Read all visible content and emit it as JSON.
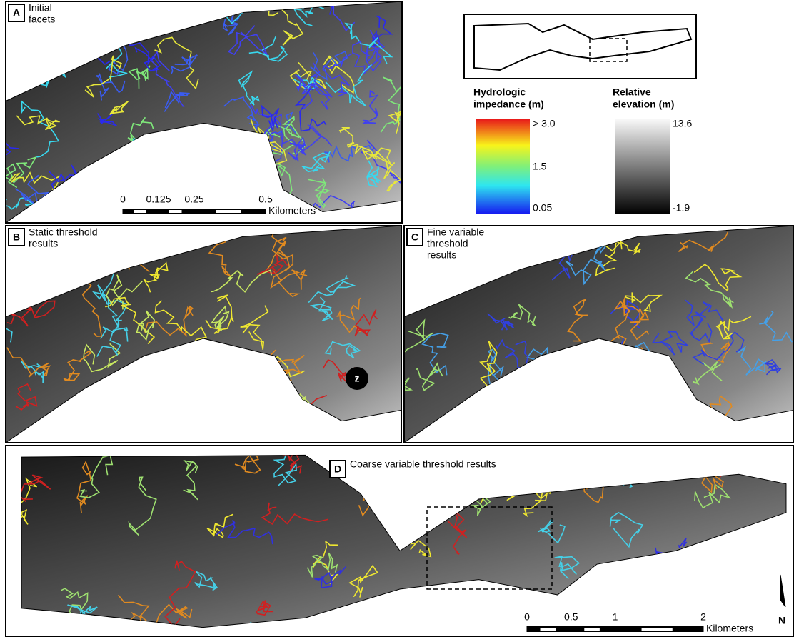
{
  "panels": [
    {
      "letter": "A",
      "title_lines": [
        "Initial",
        "facets"
      ]
    },
    {
      "letter": "B",
      "title_lines": [
        "Static threshold",
        "results"
      ]
    },
    {
      "letter": "C",
      "title_lines": [
        "Fine variable",
        "threshold",
        "results"
      ]
    },
    {
      "letter": "D",
      "title_lines": [
        "Coarse variable threshold results"
      ]
    }
  ],
  "marker": "z",
  "scale_bars": [
    {
      "ticks": [
        0,
        0.125,
        0.25,
        0.5
      ],
      "unit": "Kilometers"
    },
    {
      "ticks": [
        0,
        0.5,
        1,
        2
      ],
      "unit": "Kilometers"
    }
  ],
  "legends": [
    {
      "title_lines": [
        "Hydrologic",
        "impedance (m)"
      ],
      "ticks": [
        {
          "value": 3,
          "label": "> 3.0"
        },
        1.5,
        0.05
      ]
    },
    {
      "title_lines": [
        "Relative",
        "elevation (m)"
      ],
      "ticks": [
        13.6,
        -1.9
      ]
    }
  ],
  "north": "N"
}
